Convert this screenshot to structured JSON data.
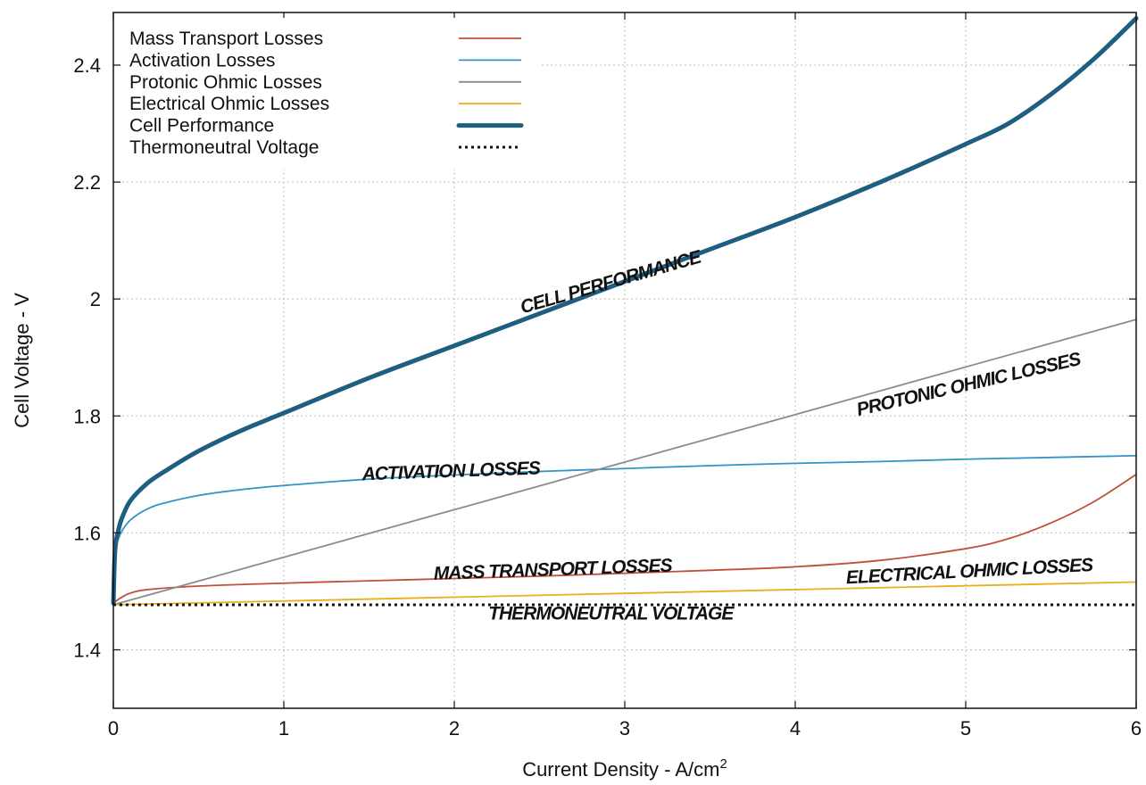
{
  "chart_data": {
    "type": "line",
    "title": "",
    "xlabel": "Current Density - A/cm",
    "xlabel_superscript": "2",
    "ylabel": "Cell Voltage - V",
    "xlim": [
      0,
      6
    ],
    "ylim": [
      1.3,
      2.49
    ],
    "grid": true,
    "legend_position": "top-left",
    "x_ticks": [
      "0",
      "1",
      "2",
      "3",
      "4",
      "5",
      "6"
    ],
    "y_ticks": [
      "1.4",
      "1.6",
      "1.8",
      "2",
      "2.2",
      "2.4"
    ],
    "series": [
      {
        "name": "Mass Transport Losses",
        "color": "#c0503b",
        "style": "solid",
        "x": [
          0,
          0.05,
          0.1,
          0.2,
          0.5,
          1,
          1.5,
          2,
          2.5,
          3,
          3.5,
          4,
          4.5,
          5,
          5.25,
          5.5,
          5.75,
          6
        ],
        "y": [
          1.48,
          1.49,
          1.497,
          1.503,
          1.509,
          1.514,
          1.518,
          1.522,
          1.526,
          1.531,
          1.536,
          1.542,
          1.553,
          1.573,
          1.59,
          1.617,
          1.653,
          1.7
        ]
      },
      {
        "name": "Activation Losses",
        "color": "#3394c6",
        "style": "solid",
        "x": [
          0,
          0.01,
          0.03,
          0.05,
          0.1,
          0.2,
          0.3,
          0.5,
          0.75,
          1,
          1.5,
          2,
          2.5,
          3,
          3.5,
          4,
          4.5,
          5,
          5.5,
          6
        ],
        "y": [
          1.48,
          1.565,
          1.59,
          1.603,
          1.622,
          1.641,
          1.651,
          1.664,
          1.674,
          1.681,
          1.692,
          1.699,
          1.705,
          1.71,
          1.715,
          1.719,
          1.722,
          1.726,
          1.729,
          1.732
        ]
      },
      {
        "name": "Protonic Ohmic Losses",
        "color": "#8c8c8c",
        "style": "solid",
        "x": [
          0,
          6
        ],
        "y": [
          1.477,
          1.965
        ]
      },
      {
        "name": "Electrical Ohmic Losses",
        "color": "#e8b019",
        "style": "solid",
        "x": [
          0,
          6
        ],
        "y": [
          1.477,
          1.516
        ]
      },
      {
        "name": "Cell Performance",
        "color": "#1e5e80",
        "style": "thick",
        "x": [
          0,
          0.01,
          0.03,
          0.05,
          0.1,
          0.2,
          0.3,
          0.5,
          0.75,
          1,
          1.5,
          2,
          2.5,
          3,
          3.5,
          4,
          4.5,
          5,
          5.25,
          5.5,
          5.75,
          6
        ],
        "y": [
          1.48,
          1.57,
          1.605,
          1.625,
          1.655,
          1.685,
          1.705,
          1.74,
          1.775,
          1.805,
          1.865,
          1.92,
          1.975,
          2.03,
          2.085,
          2.14,
          2.2,
          2.265,
          2.3,
          2.35,
          2.41,
          2.48
        ]
      },
      {
        "name": "Thermoneutral Voltage",
        "color": "#111111",
        "style": "dotted",
        "x": [
          0,
          6
        ],
        "y": [
          1.477,
          1.477
        ]
      }
    ],
    "annotations": [
      {
        "text": "CELL PERFORMANCE",
        "x": 2.4,
        "y": 1.975,
        "angle": -16
      },
      {
        "text": "PROTONIC OHMIC LOSSES",
        "x": 4.37,
        "y": 1.8,
        "angle": -13
      },
      {
        "text": "ACTIVATION LOSSES",
        "x": 1.46,
        "y": 1.69,
        "angle": -2
      },
      {
        "text": "MASS TRANSPORT LOSSES",
        "x": 1.88,
        "y": 1.52,
        "angle": -2
      },
      {
        "text": "ELECTRICAL OHMIC LOSSES",
        "x": 4.3,
        "y": 1.513,
        "angle": -3
      },
      {
        "text": "THERMONEUTRAL VOLTAGE",
        "x": 2.2,
        "y": 1.452,
        "angle": 0
      }
    ]
  }
}
